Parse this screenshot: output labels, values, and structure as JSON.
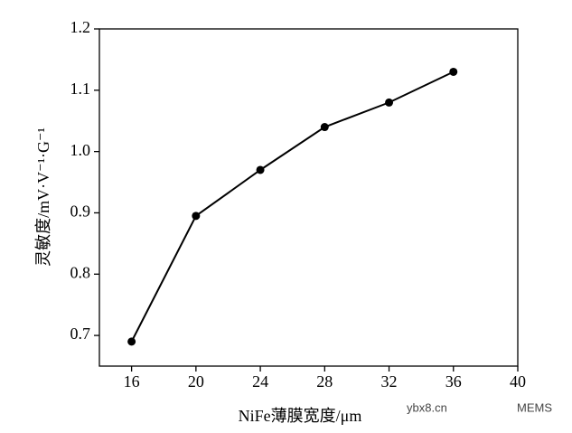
{
  "chart_data": {
    "type": "line",
    "x_label": "NiFe薄膜宽度/μm",
    "y_label": "灵敏度/mV·V⁻¹·G⁻¹",
    "series": [
      {
        "x": [
          16,
          20,
          24,
          28,
          32,
          36
        ],
        "values": [
          0.69,
          0.895,
          0.97,
          1.04,
          1.08,
          1.13
        ],
        "color": "#000000"
      }
    ],
    "xlim": [
      14,
      40
    ],
    "xticks": [
      16,
      20,
      24,
      28,
      32,
      36,
      40
    ],
    "ylim": [
      0.65,
      1.2
    ],
    "yticks": [
      0.7,
      0.8,
      0.9,
      {
        "value": 1,
        "label": "1.0"
      },
      1.1,
      1.2
    ],
    "grid": false
  },
  "watermarks": [
    "ybx8.cn",
    "MEMS"
  ]
}
